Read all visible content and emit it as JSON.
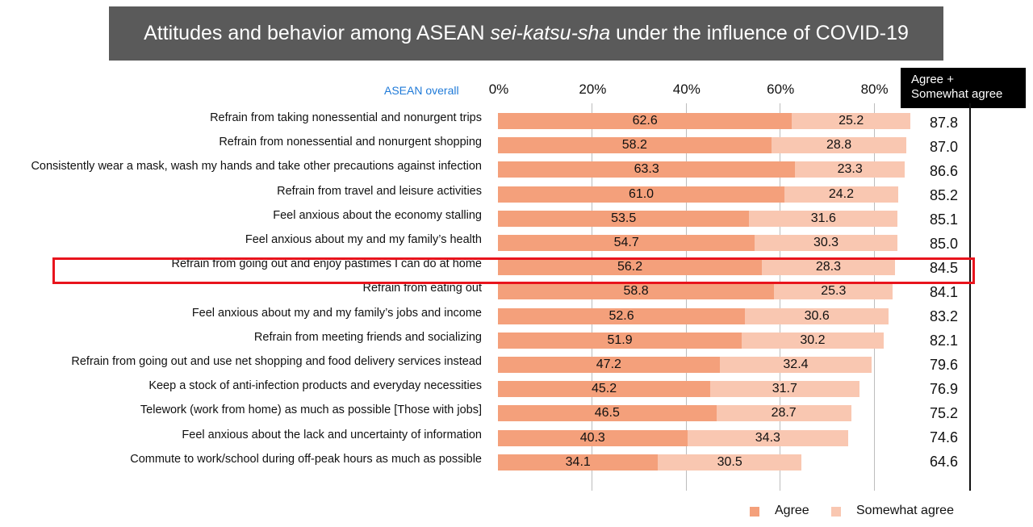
{
  "title": {
    "prefix": "Attitudes and behavior among ASEAN ",
    "italic": "sei-katsu-sha",
    "suffix": " under the influence of COVID-19"
  },
  "overall_label": "ASEAN overall",
  "total_header": {
    "line1": "Agree +",
    "line2": "Somewhat agree"
  },
  "colors": {
    "agree": "#f4a07b",
    "somewhat_agree": "#f9c7b1",
    "highlight": "#e8141d",
    "title_bg": "#5a5a5a"
  },
  "legend": {
    "agree": "Agree",
    "somewhat_agree": "Somewhat agree"
  },
  "chart_data": {
    "type": "bar",
    "orientation": "horizontal",
    "stacked": true,
    "xlim": [
      0,
      100
    ],
    "tick_labels": [
      "0%",
      "20%",
      "40%",
      "60%",
      "80%"
    ],
    "grid": true,
    "legend_position": "bottom-right",
    "highlighted_category": "Refrain from going out and enjoy pastimes I can do at home",
    "categories": [
      "Refrain from taking nonessential and nonurgent trips",
      "Refrain from nonessential and nonurgent shopping",
      "Consistently wear a mask, wash my hands and take other precautions against infection",
      "Refrain from travel and leisure activities",
      "Feel anxious about the economy stalling",
      "Feel anxious about my and my family’s health",
      "Refrain from going out and enjoy pastimes I can do at home",
      "Refrain from eating out",
      "Feel anxious about my and my family’s jobs and income",
      "Refrain from meeting friends and socializing",
      "Refrain from going out and use net shopping and food delivery services instead",
      "Keep a stock of anti-infection products and everyday necessities",
      "Telework (work from home) as much as possible [Those with jobs]",
      "Feel anxious about the lack and uncertainty of information",
      "Commute to work/school during off-peak hours as much as possible"
    ],
    "series": [
      {
        "name": "Agree",
        "values": [
          "62.6",
          "58.2",
          "63.3",
          "61.0",
          "53.5",
          "54.7",
          "56.2",
          "58.8",
          "52.6",
          "51.9",
          "47.2",
          "45.2",
          "46.5",
          "40.3",
          "34.1"
        ]
      },
      {
        "name": "Somewhat agree",
        "values": [
          "25.2",
          "28.8",
          "23.3",
          "24.2",
          "31.6",
          "30.3",
          "28.3",
          "25.3",
          "30.6",
          "30.2",
          "32.4",
          "31.7",
          "28.7",
          "34.3",
          "30.5"
        ]
      }
    ],
    "totals": [
      "87.8",
      "87.0",
      "86.6",
      "85.2",
      "85.1",
      "85.0",
      "84.5",
      "84.1",
      "83.2",
      "82.1",
      "79.6",
      "76.9",
      "75.2",
      "74.6",
      "64.6"
    ]
  }
}
